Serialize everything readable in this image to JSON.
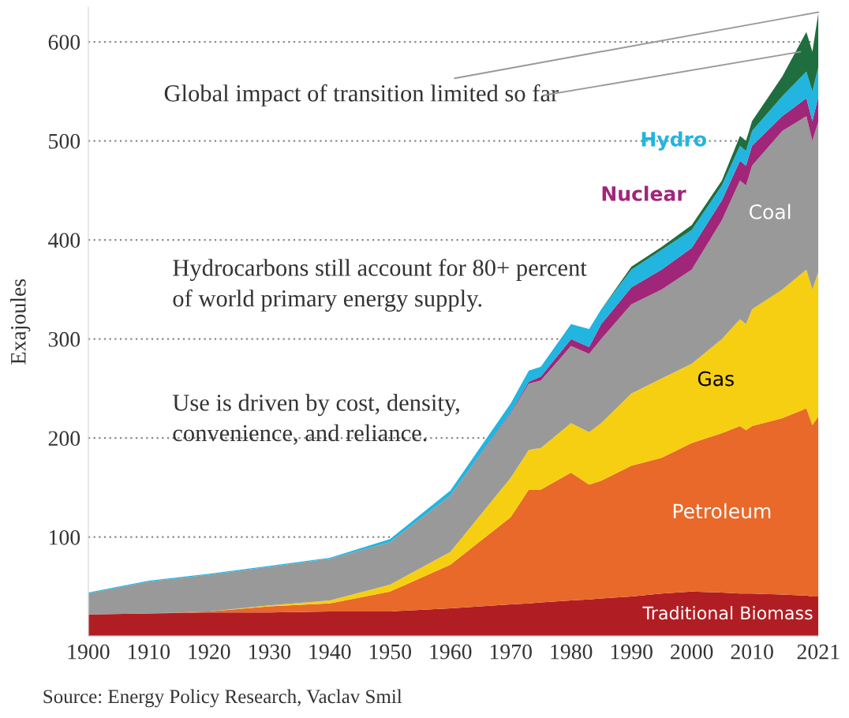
{
  "chart_data": {
    "type": "area",
    "stacked": true,
    "ylabel": "Exajoules",
    "x": [
      1900,
      1910,
      1920,
      1930,
      1940,
      1950,
      1960,
      1970,
      1973,
      1975,
      1980,
      1983,
      1985,
      1990,
      1995,
      2000,
      2005,
      2008,
      2009,
      2010,
      2015,
      2019,
      2020,
      2021
    ],
    "series": [
      {
        "name": "Traditional Biomass",
        "color": "#b01e23",
        "values": [
          22,
          23,
          24,
          24,
          25,
          25,
          28,
          32,
          33,
          34,
          36,
          37,
          38,
          40,
          43,
          45,
          44,
          43,
          43,
          43,
          42,
          41,
          40,
          40
        ]
      },
      {
        "name": "Petroleum",
        "color": "#e8692a",
        "values": [
          0,
          0,
          1,
          6,
          8,
          20,
          44,
          88,
          115,
          114,
          129,
          116,
          119,
          132,
          137,
          150,
          161,
          169,
          165,
          169,
          178,
          189,
          173,
          182
        ]
      },
      {
        "name": "Gas",
        "color": "#f7cf12",
        "values": [
          0,
          0,
          0,
          1,
          3,
          7,
          13,
          40,
          40,
          42,
          50,
          53,
          58,
          73,
          80,
          80,
          95,
          108,
          107,
          118,
          130,
          140,
          137,
          146
        ]
      },
      {
        "name": "Coal",
        "color": "#999999",
        "values": [
          21,
          32,
          37,
          39,
          42,
          43,
          57,
          65,
          67,
          68,
          78,
          79,
          85,
          90,
          90,
          95,
          120,
          140,
          140,
          145,
          160,
          155,
          150,
          152
        ]
      },
      {
        "name": "Nuclear",
        "color": "#a0267a",
        "values": [
          0,
          0,
          0,
          0,
          0,
          0,
          0,
          1,
          2,
          4,
          7,
          7,
          15,
          17,
          20,
          22,
          20,
          20,
          20,
          20,
          15,
          18,
          20,
          25
        ]
      },
      {
        "name": "Hydro",
        "color": "#21b5e0",
        "values": [
          1,
          1,
          1,
          1,
          1,
          3,
          5,
          9,
          11,
          10,
          15,
          18,
          15,
          18,
          20,
          18,
          15,
          15,
          15,
          15,
          20,
          27,
          30,
          30
        ]
      },
      {
        "color": "#1f6e3f",
        "values": [
          0,
          0,
          0,
          0,
          0,
          0,
          0,
          0,
          0,
          0,
          0,
          0,
          0,
          3,
          3,
          5,
          5,
          10,
          10,
          10,
          20,
          40,
          40,
          55
        ]
      }
    ],
    "xlim": [
      1900,
      2021
    ],
    "ylim": [
      0,
      635
    ],
    "xticks": [
      1900,
      1910,
      1920,
      1930,
      1940,
      1950,
      1960,
      1970,
      1980,
      1990,
      2000,
      2010,
      2021
    ],
    "yticks": [
      {
        "value": 100,
        "label": "100"
      },
      {
        "value": 200,
        "label": "200"
      },
      {
        "value": 300,
        "label": "300"
      },
      {
        "value": 400,
        "label": "400"
      },
      {
        "value": 500,
        "label": "500"
      },
      {
        "value": 600,
        "label": "600"
      }
    ],
    "grid": "y",
    "legend": false,
    "annotations": [
      {
        "text": "Global impact of transition limited so far",
        "x": 2021,
        "y": 630
      },
      "Hydrocarbons still account for 80+ percent\nof world primary energy supply.",
      "Use is driven by cost, density,\nconvenience, and reliance.",
      "Source: Energy Policy Research, Vaclav Smil"
    ]
  }
}
